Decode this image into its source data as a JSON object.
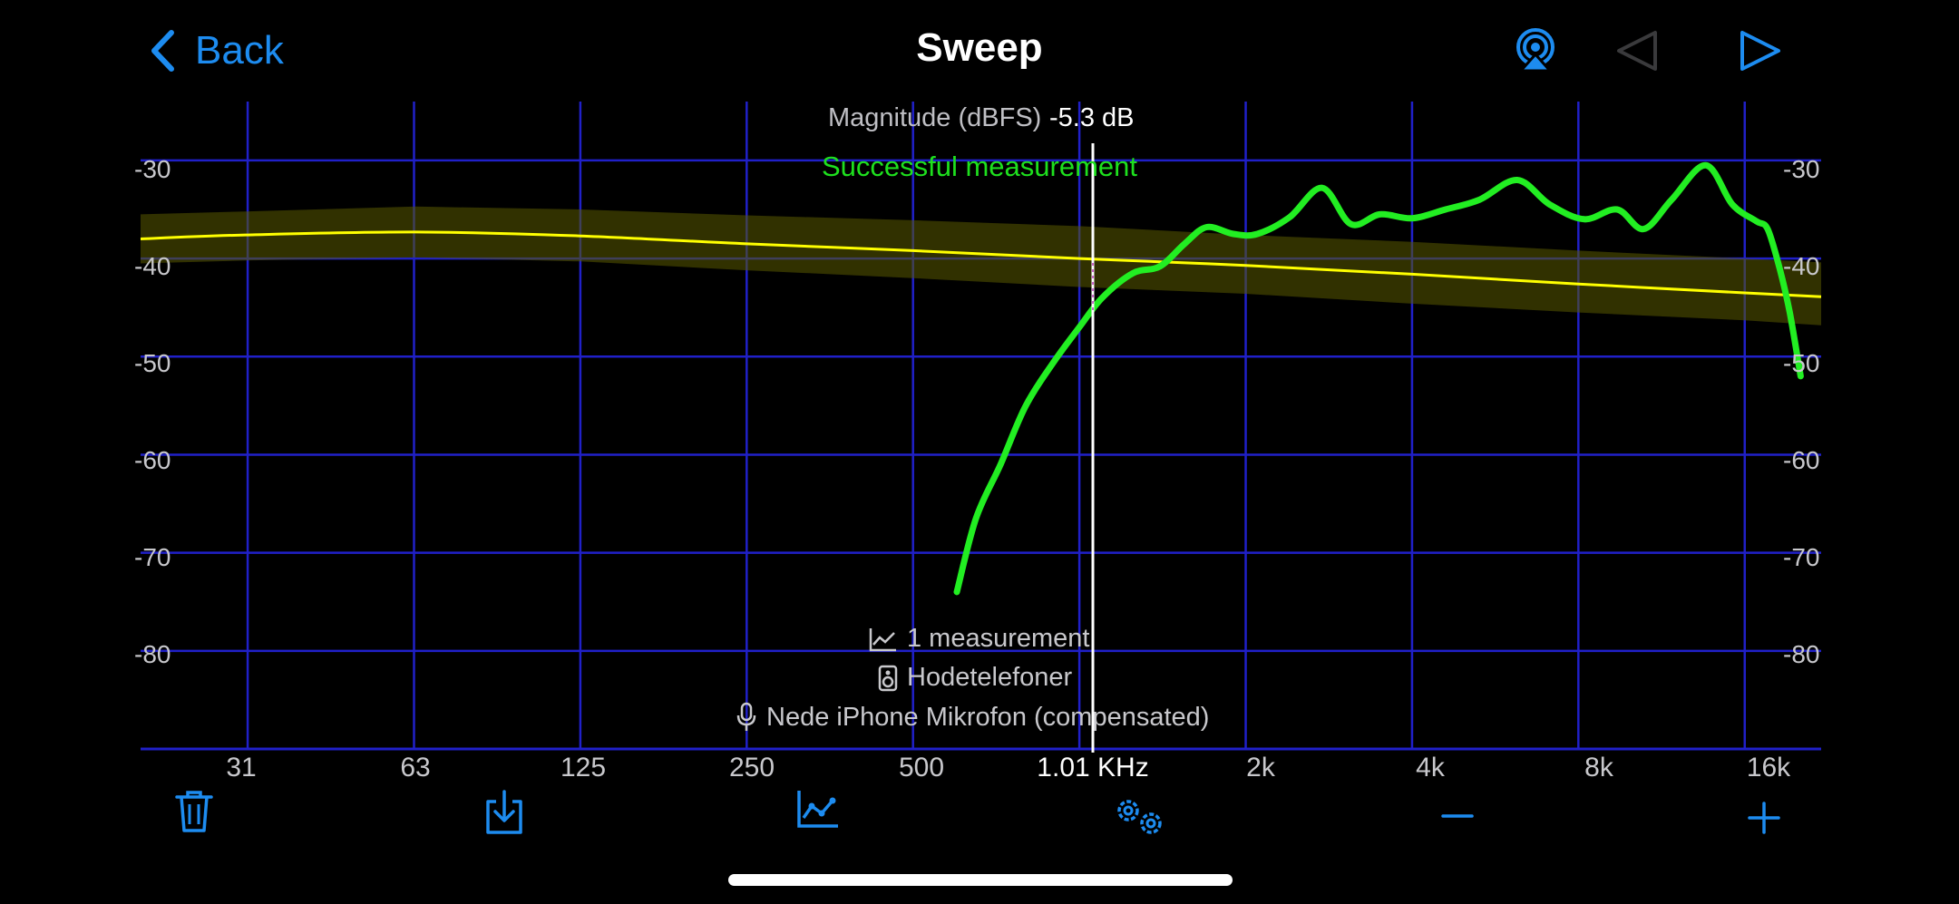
{
  "nav": {
    "back_label": "Back",
    "title": "Sweep",
    "airplay_icon": "airplay-icon",
    "prev_icon": "triangle-left-icon",
    "play_icon": "play-icon"
  },
  "chart": {
    "magnitude_label": "Magnitude (dBFS)",
    "cursor_value": "-5.3 dB",
    "status": "Successful measurement",
    "cursor_frequency": "1.01 KHz",
    "measurement_count": "1 measurement",
    "output_device": "Hodetelefoner",
    "input_device": "Nede iPhone Mikrofon (compensated)",
    "colors": {
      "grid": "#2020c8",
      "reference": "#ffff00",
      "band": "#5a5a00",
      "measurement": "#22ee22",
      "accent": "#1d8cf0"
    }
  },
  "chart_data": {
    "type": "line",
    "x_scale": "log",
    "x_ticks": [
      "31",
      "63",
      "125",
      "250",
      "500",
      "1.01 KHz",
      "2k",
      "4k",
      "8k",
      "16k"
    ],
    "y_ticks": [
      "-30",
      "-40",
      "-50",
      "-60",
      "-70",
      "-80"
    ],
    "ylim": [
      -90,
      -24
    ],
    "grid": true,
    "series": [
      {
        "role": "reference",
        "x": [
          20,
          31,
          63,
          125,
          250,
          500,
          1000,
          2000,
          4000,
          8000,
          16000,
          22000
        ],
        "y": [
          -38.0,
          -37.6,
          -37.3,
          -37.7,
          -38.5,
          -39.2,
          -40.0,
          -40.7,
          -41.6,
          -42.6,
          -43.5,
          -43.9
        ],
        "band_upper": [
          -35.5,
          -35.2,
          -34.7,
          -35.0,
          -35.6,
          -36.1,
          -36.7,
          -37.6,
          -38.3,
          -39.2,
          -40.0,
          -40.4
        ],
        "band_lower": [
          -40.5,
          -40.2,
          -39.9,
          -40.3,
          -41.2,
          -42.0,
          -42.9,
          -43.6,
          -44.6,
          -45.5,
          -46.3,
          -46.8
        ]
      },
      {
        "role": "measurement",
        "x": [
          600,
          650,
          720,
          800,
          900,
          1000,
          1100,
          1250,
          1400,
          1550,
          1700,
          1900,
          2100,
          2400,
          2750,
          3100,
          3500,
          4000,
          4600,
          5300,
          6200,
          7100,
          8200,
          9400,
          10500,
          11800,
          13600,
          15200,
          16800,
          17600,
          18500,
          19300,
          20200
        ],
        "y": [
          -74.0,
          -66.5,
          -61.0,
          -55.0,
          -50.5,
          -47.0,
          -44.0,
          -41.5,
          -40.8,
          -38.5,
          -36.8,
          -37.5,
          -37.5,
          -35.8,
          -32.8,
          -36.5,
          -35.5,
          -35.9,
          -35.0,
          -34.0,
          -32.0,
          -34.5,
          -36.0,
          -35.0,
          -37.0,
          -34.0,
          -30.5,
          -34.5,
          -36.2,
          -37.0,
          -41.0,
          -45.5,
          -52.0
        ]
      }
    ]
  }
}
